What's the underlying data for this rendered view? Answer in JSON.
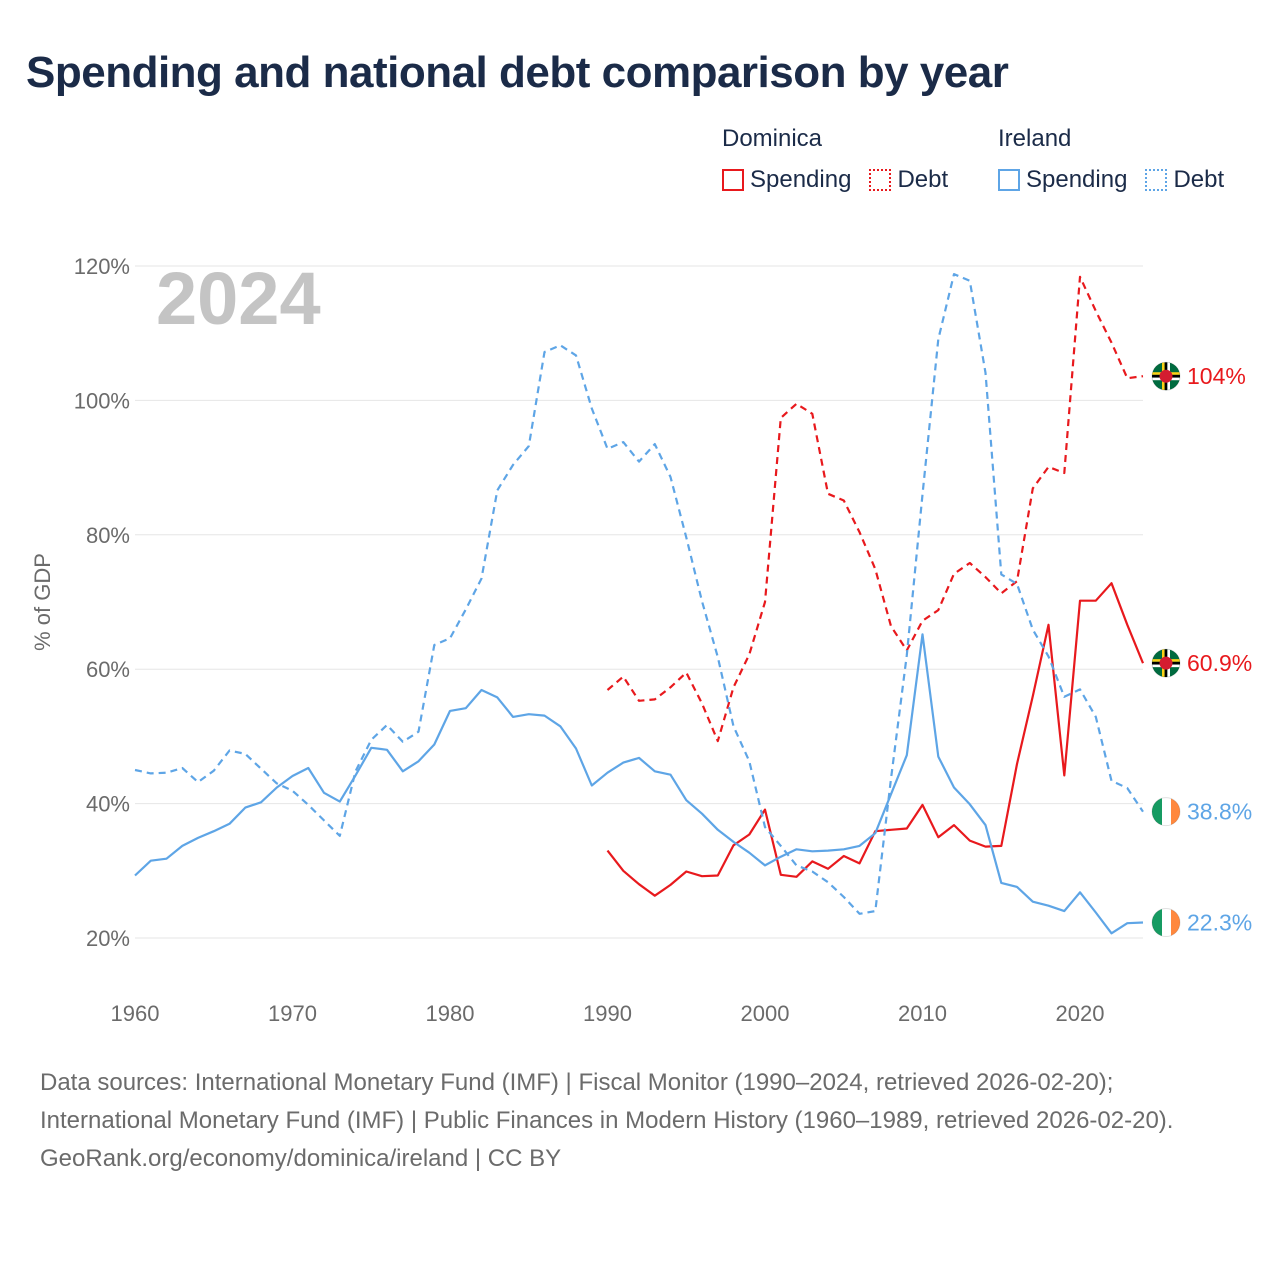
{
  "title": "Spending and national debt comparison by year",
  "legend": {
    "groups": [
      {
        "country": "Dominica",
        "items": [
          {
            "label": "Spending",
            "style": "solid"
          },
          {
            "label": "Debt",
            "style": "dotted"
          }
        ],
        "color": "#e8191d"
      },
      {
        "country": "Ireland",
        "items": [
          {
            "label": "Spending",
            "style": "solid"
          },
          {
            "label": "Debt",
            "style": "dotted"
          }
        ],
        "color": "#5ea5e6"
      }
    ]
  },
  "footer": {
    "sources": "Data sources: International Monetary Fund (IMF) | Fiscal Monitor (1990–2024, retrieved 2026-02-20); International Monetary Fund (IMF) | Public Finances in Modern History (1960–1989, retrieved 2026-02-20).",
    "credit": "GeoRank.org/economy/dominica/ireland | CC BY"
  },
  "chart_data": {
    "type": "line",
    "title": "Spending and national debt comparison by year",
    "year_watermark": "2024",
    "ylabel": "% of GDP",
    "xlabel": "",
    "xlim": [
      1960,
      2024
    ],
    "ylim": [
      20,
      120
    ],
    "grid": true,
    "xticks": [
      1960,
      1970,
      1980,
      1990,
      2000,
      2010,
      2020
    ],
    "yticks": [
      20,
      40,
      60,
      80,
      100,
      120
    ],
    "ytick_labels": [
      "20%",
      "40%",
      "60%",
      "80%",
      "100%",
      "120%"
    ],
    "series": [
      {
        "name": "Dominica Spending",
        "country": "Dominica",
        "metric": "Spending",
        "color": "#e8191d",
        "dash": false,
        "flag": "dominica",
        "end_label": "60.9%",
        "x": [
          1990,
          1991,
          1992,
          1993,
          1994,
          1995,
          1996,
          1997,
          1998,
          1999,
          2000,
          2001,
          2002,
          2003,
          2004,
          2005,
          2006,
          2007,
          2008,
          2009,
          2010,
          2011,
          2012,
          2013,
          2014,
          2015,
          2016,
          2017,
          2018,
          2019,
          2020,
          2021,
          2022,
          2023,
          2024
        ],
        "values": [
          33,
          30,
          28,
          26.3,
          27.9,
          29.9,
          29.2,
          29.3,
          33.8,
          35.4,
          39.1,
          29.4,
          29.1,
          31.4,
          30.3,
          32.2,
          31.1,
          35.9,
          36.1,
          36.3,
          39.8,
          35,
          36.8,
          34.5,
          33.6,
          33.7,
          45.9,
          56,
          66.6,
          44.2,
          70.2,
          70.2,
          72.8,
          66.6,
          60.9
        ]
      },
      {
        "name": "Dominica Debt",
        "country": "Dominica",
        "metric": "Debt",
        "color": "#e8191d",
        "dash": true,
        "flag": "dominica",
        "end_label": "104%",
        "x": [
          1990,
          1991,
          1992,
          1993,
          1994,
          1995,
          1996,
          1997,
          1998,
          1999,
          2000,
          2001,
          2002,
          2003,
          2004,
          2005,
          2006,
          2007,
          2008,
          2009,
          2010,
          2011,
          2012,
          2013,
          2014,
          2015,
          2016,
          2017,
          2018,
          2019,
          2020,
          2021,
          2022,
          2023,
          2024
        ],
        "values": [
          56.9,
          58.9,
          55.3,
          55.5,
          57.3,
          59.5,
          54.9,
          49.3,
          57.3,
          62.2,
          70,
          97.4,
          99.5,
          98,
          86.1,
          85.1,
          80.4,
          74.9,
          66.4,
          62.8,
          67.2,
          68.8,
          74.2,
          75.8,
          73.7,
          71.3,
          73.1,
          86.9,
          90.1,
          89.2,
          118.4,
          113.3,
          108.6,
          103.3,
          103.6
        ]
      },
      {
        "name": "Ireland Spending",
        "country": "Ireland",
        "metric": "Spending",
        "color": "#5ea5e6",
        "dash": false,
        "flag": "ireland",
        "end_label": "22.3%",
        "x": [
          1960,
          1961,
          1962,
          1963,
          1964,
          1965,
          1966,
          1967,
          1968,
          1969,
          1970,
          1971,
          1972,
          1973,
          1974,
          1975,
          1976,
          1977,
          1978,
          1979,
          1980,
          1981,
          1982,
          1983,
          1984,
          1985,
          1986,
          1987,
          1988,
          1989,
          1990,
          1991,
          1992,
          1993,
          1994,
          1995,
          1996,
          1997,
          1998,
          1999,
          2000,
          2001,
          2002,
          2003,
          2004,
          2005,
          2006,
          2007,
          2008,
          2009,
          2010,
          2011,
          2012,
          2013,
          2014,
          2015,
          2016,
          2017,
          2018,
          2019,
          2020,
          2021,
          2022,
          2023,
          2024
        ],
        "values": [
          29.3,
          31.5,
          31.8,
          33.7,
          34.9,
          35.9,
          37,
          39.4,
          40.2,
          42.4,
          44.1,
          45.3,
          41.6,
          40.3,
          44.2,
          48.3,
          48,
          44.8,
          46.3,
          48.8,
          53.8,
          54.2,
          56.9,
          55.8,
          52.9,
          53.3,
          53.1,
          51.5,
          48.2,
          42.7,
          44.6,
          46.1,
          46.8,
          44.8,
          44.3,
          40.5,
          38.5,
          36.1,
          34.3,
          32.7,
          30.8,
          32.1,
          33.2,
          32.9,
          33,
          33.2,
          33.7,
          35.6,
          41.4,
          47.2,
          65.2,
          47,
          42.4,
          39.9,
          36.8,
          28.2,
          27.6,
          25.4,
          24.8,
          24,
          26.8,
          23.8,
          20.7,
          22.2,
          22.3
        ]
      },
      {
        "name": "Ireland Debt",
        "country": "Ireland",
        "metric": "Debt",
        "color": "#5ea5e6",
        "dash": true,
        "flag": "ireland",
        "end_label": "38.8%",
        "x": [
          1960,
          1961,
          1962,
          1963,
          1964,
          1965,
          1966,
          1967,
          1968,
          1969,
          1970,
          1971,
          1972,
          1973,
          1974,
          1975,
          1976,
          1977,
          1978,
          1979,
          1980,
          1981,
          1982,
          1983,
          1984,
          1985,
          1986,
          1987,
          1988,
          1989,
          1990,
          1991,
          1992,
          1993,
          1994,
          1995,
          1996,
          1997,
          1998,
          1999,
          2000,
          2001,
          2002,
          2003,
          2004,
          2005,
          2006,
          2007,
          2008,
          2009,
          2010,
          2011,
          2012,
          2013,
          2014,
          2015,
          2016,
          2017,
          2018,
          2019,
          2020,
          2021,
          2022,
          2023,
          2024
        ],
        "values": [
          45,
          44.5,
          44.6,
          45.3,
          43.2,
          44.9,
          47.9,
          47.4,
          45.2,
          43,
          41.9,
          39.8,
          37.5,
          35.2,
          44.8,
          49.5,
          51.7,
          49.2,
          50.7,
          63.6,
          64.6,
          68.9,
          73.5,
          86.6,
          90.4,
          93.2,
          107.2,
          108.2,
          106.7,
          98.8,
          92.8,
          93.8,
          90.9,
          93.5,
          88.6,
          79.6,
          70.1,
          61.8,
          51.5,
          46.3,
          36.5,
          33.7,
          30.8,
          29.9,
          28.3,
          26.1,
          23.6,
          24,
          43.7,
          62.1,
          86,
          109.1,
          118.8,
          117.8,
          104.1,
          74.1,
          72.7,
          65.9,
          61.9,
          55.9,
          57,
          52.9,
          43.4,
          42.3,
          38.8
        ]
      }
    ]
  }
}
